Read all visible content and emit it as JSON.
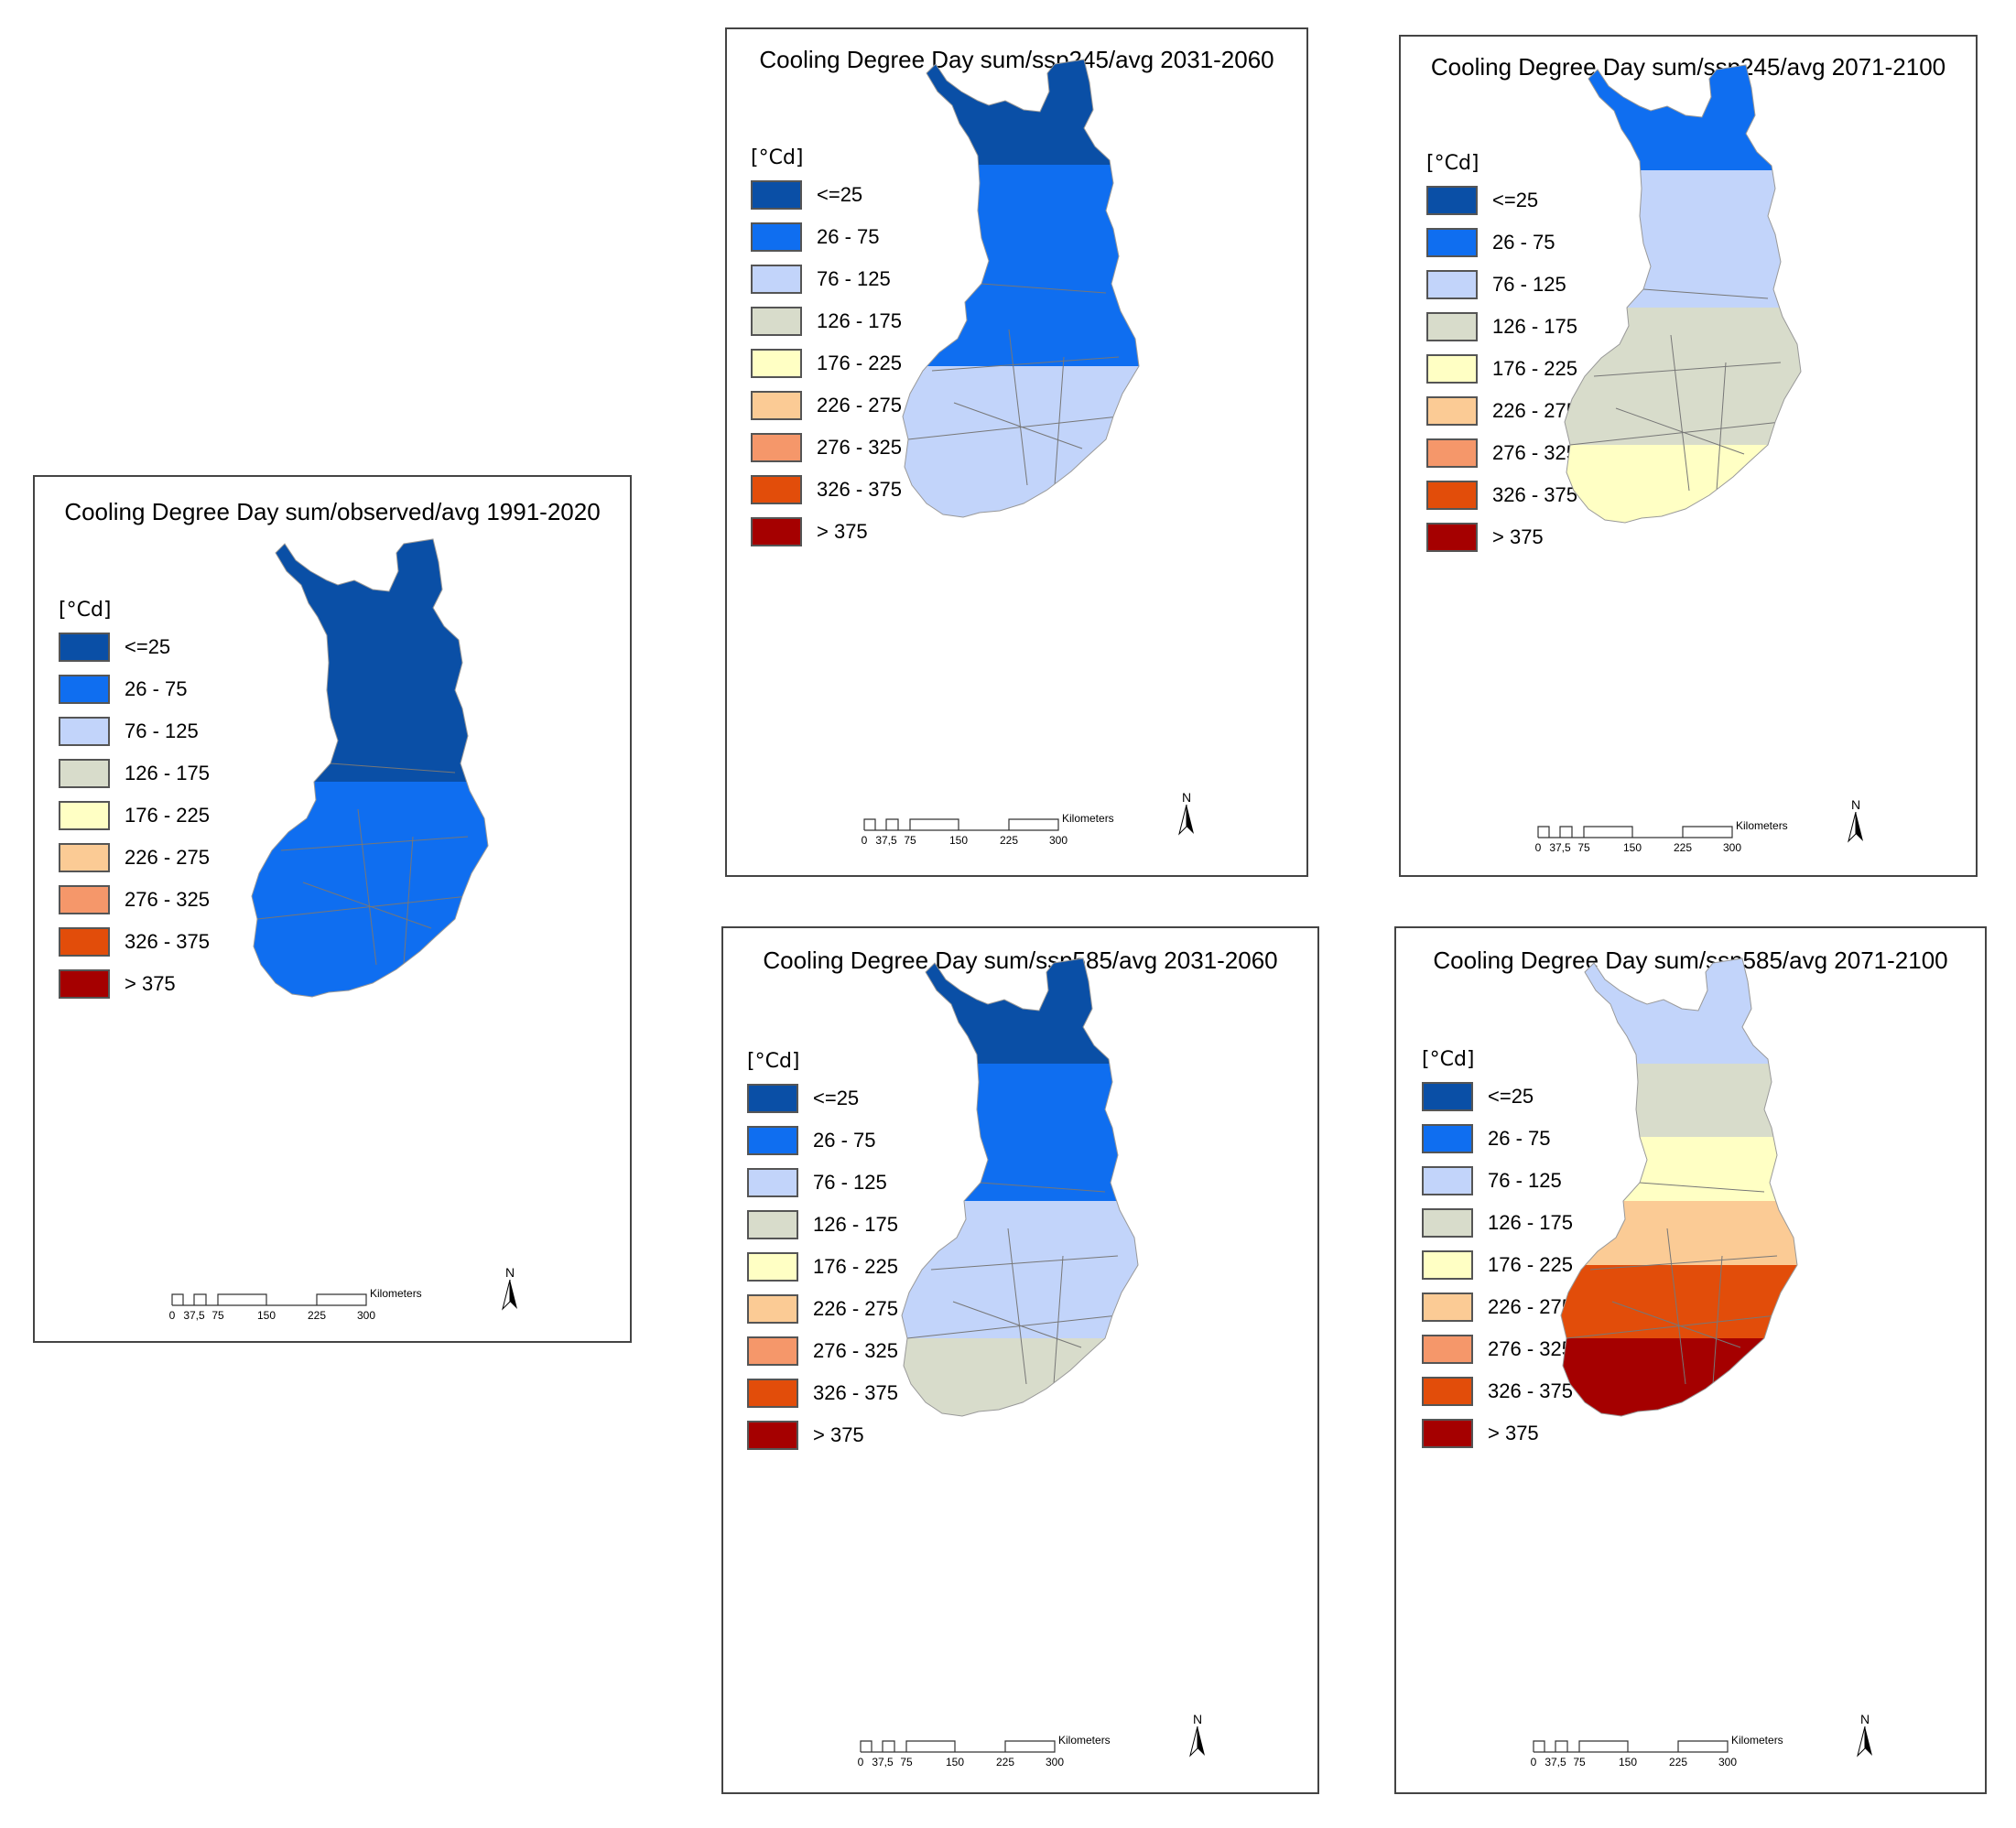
{
  "legend": {
    "unit": "[°Cd]",
    "classes": [
      {
        "label": "<=25",
        "color": "#0a4fa6"
      },
      {
        "label": "26 - 75",
        "color": "#0f6ef0"
      },
      {
        "label": "76 - 125",
        "color": "#c2d4fa"
      },
      {
        "label": "126 - 175",
        "color": "#d8dccb"
      },
      {
        "label": "176 - 225",
        "color": "#ffffc4"
      },
      {
        "label": "226 - 275",
        "color": "#fbcb95"
      },
      {
        "label": "276 - 325",
        "color": "#f5976a"
      },
      {
        "label": "326 - 375",
        "color": "#e24d0a"
      },
      {
        "label": "> 375",
        "color": "#a50000"
      }
    ]
  },
  "scale": {
    "ticks": [
      "0",
      "37,5",
      "75",
      "150",
      "225",
      "300"
    ],
    "unit": "Kilometers"
  },
  "north_label": "N",
  "panels": [
    {
      "id": "observed-1991-2020",
      "title": "Cooling Degree Day sum/observed/avg 1991-2020",
      "zones": [
        "<=25",
        "<=25",
        "<=25",
        "26 - 75",
        "26 - 75",
        "26 - 75"
      ]
    },
    {
      "id": "ssp245-2031-2060",
      "title": "Cooling Degree Day sum/ssp245/avg 2031-2060",
      "zones": [
        "<=25",
        "26 - 75",
        "26 - 75",
        "26 - 75",
        "76 - 125",
        "76 - 125"
      ]
    },
    {
      "id": "ssp245-2071-2100",
      "title": "Cooling Degree Day sum/ssp245/avg 2071-2100",
      "zones": [
        "26 - 75",
        "76 - 125",
        "76 - 125",
        "126 - 175",
        "126 - 175",
        "176 - 225"
      ]
    },
    {
      "id": "ssp585-2031-2060",
      "title": "Cooling Degree Day sum/ssp585/avg 2031-2060",
      "zones": [
        "<=25",
        "26 - 75",
        "26 - 75",
        "76 - 125",
        "76 - 125",
        "126 - 175"
      ]
    },
    {
      "id": "ssp585-2071-2100",
      "title": "Cooling Degree Day sum/ssp585/avg 2071-2100",
      "zones": [
        "76 - 125",
        "126 - 175",
        "176 - 225",
        "226 - 275",
        "326 - 375",
        "> 375"
      ]
    }
  ]
}
